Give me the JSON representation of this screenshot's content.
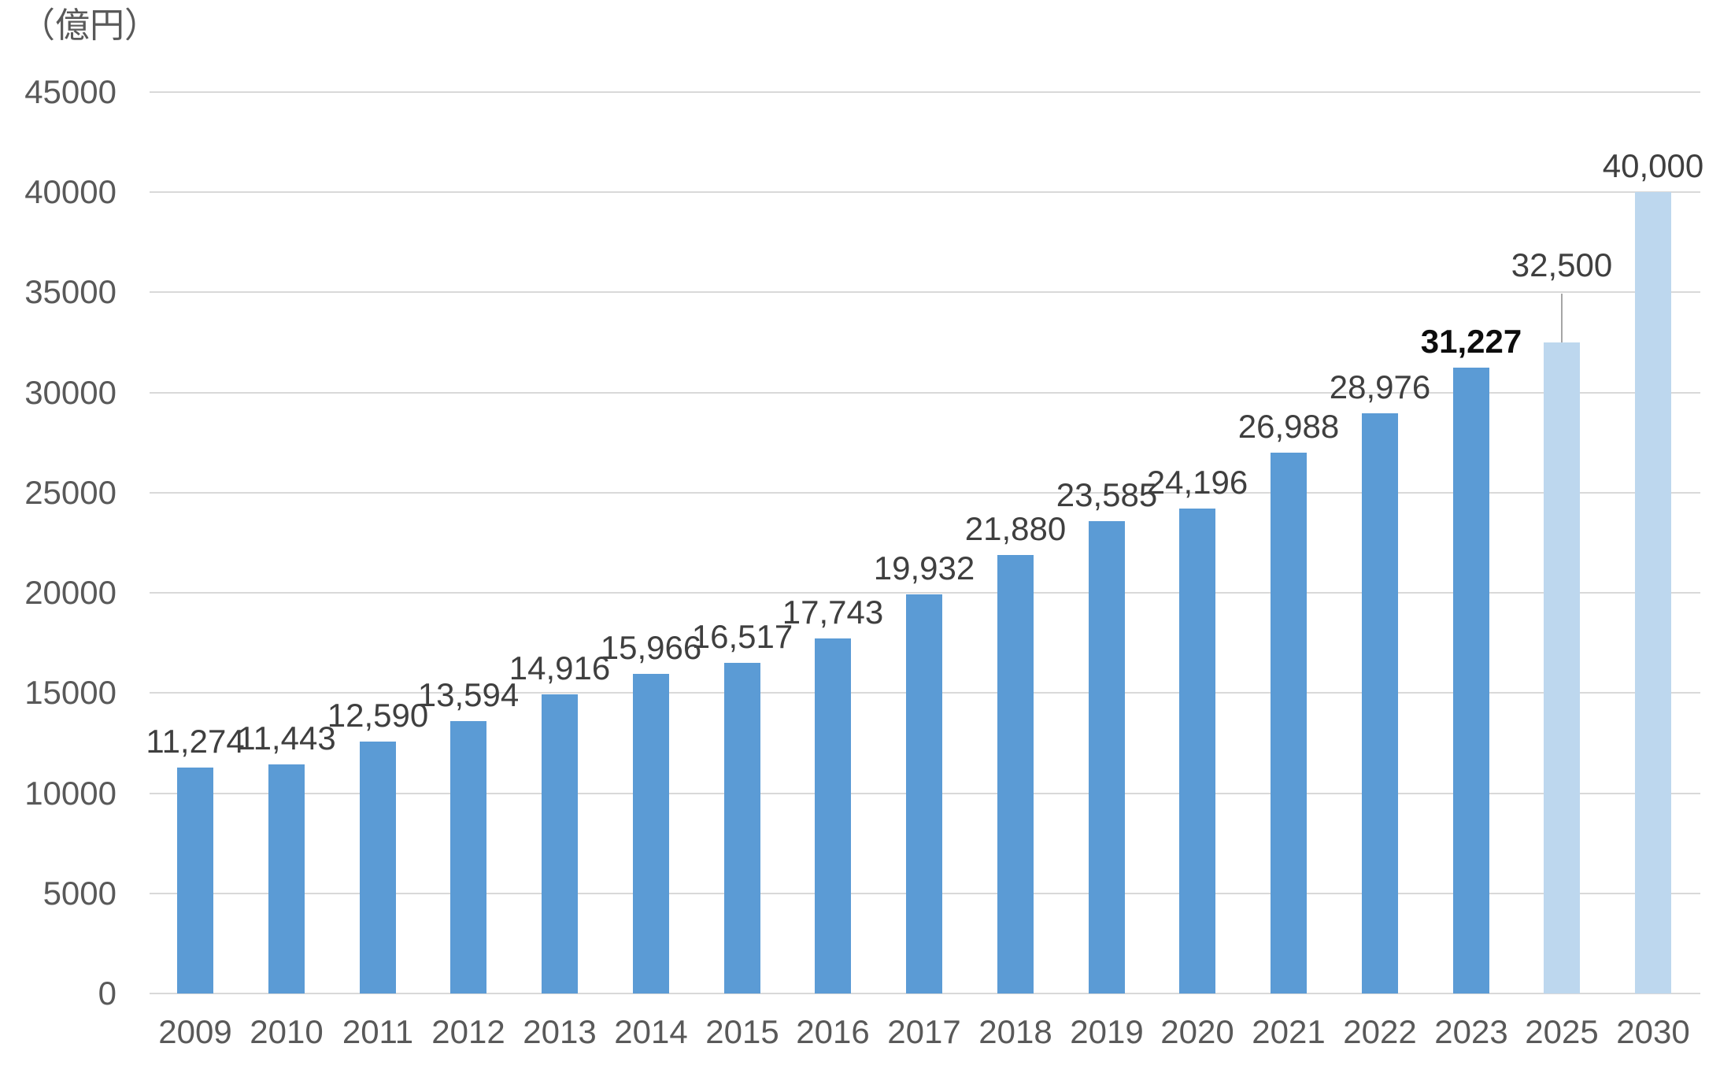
{
  "chart_data": {
    "type": "bar",
    "title": "",
    "unit_label": "（億円）",
    "xlabel": "",
    "ylabel": "",
    "categories": [
      "2009",
      "2010",
      "2011",
      "2012",
      "2013",
      "2014",
      "2015",
      "2016",
      "2017",
      "2018",
      "2019",
      "2020",
      "2021",
      "2022",
      "2023",
      "2025",
      "2030"
    ],
    "values": [
      11274,
      11443,
      12590,
      13594,
      14916,
      15966,
      16517,
      17743,
      19932,
      21880,
      23585,
      24196,
      26988,
      28976,
      31227,
      32500,
      40000
    ],
    "value_labels": [
      "11,274",
      "11,443",
      "12,590",
      "13,594",
      "14,916",
      "15,966",
      "16,517",
      "17,743",
      "19,932",
      "21,880",
      "23,585",
      "24,196",
      "26,988",
      "28,976",
      "31,227",
      "32,500",
      "40,000"
    ],
    "forecast_flags": [
      false,
      false,
      false,
      false,
      false,
      false,
      false,
      false,
      false,
      false,
      false,
      false,
      false,
      false,
      false,
      true,
      true
    ],
    "emphasized_label_index": 14,
    "leader_line_index": 15,
    "ylim": [
      0,
      45000
    ],
    "ytick_step": 5000,
    "ytick_labels": [
      "0",
      "5000",
      "10000",
      "15000",
      "20000",
      "25000",
      "30000",
      "35000",
      "40000",
      "45000"
    ],
    "ytick_values": [
      0,
      5000,
      10000,
      15000,
      20000,
      25000,
      30000,
      35000,
      40000,
      45000
    ],
    "grid": true,
    "legend": "none",
    "colors": {
      "bar_actual": "#5B9BD5",
      "bar_forecast": "#BDD7EE",
      "gridline": "#D9D9D9",
      "axis_text": "#595959",
      "value_label_text": "#3F3F3F",
      "value_label_emphasis": "#0D0D0D",
      "leader_line": "#A6A6A6",
      "background": "#FFFFFF"
    }
  }
}
